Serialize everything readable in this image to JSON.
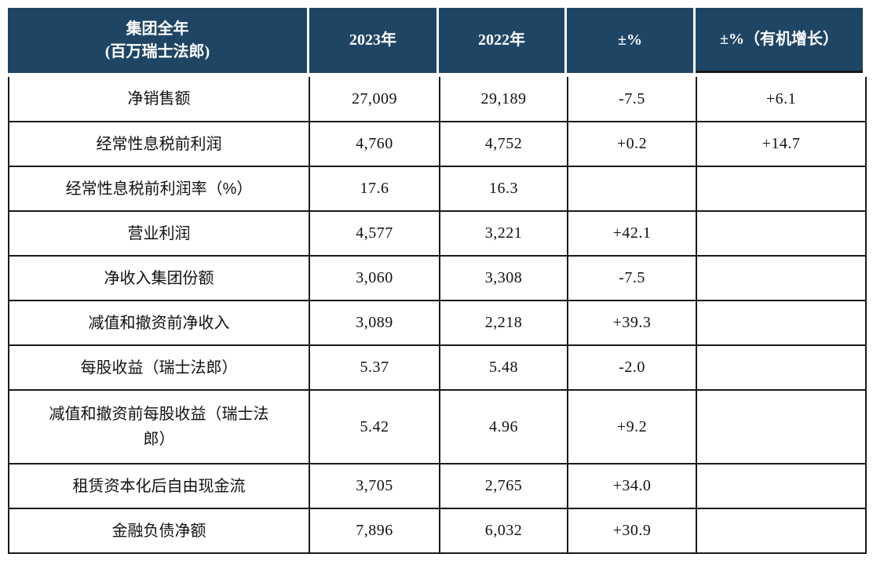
{
  "table": {
    "header": {
      "title": "集团全年\n(百万瑞士法郎)",
      "col_2023": "2023年",
      "col_2022": "2022年",
      "col_change": "±%",
      "col_organic": "±%（有机增长）"
    },
    "rows": [
      {
        "label": "净销售额",
        "y2023": "27,009",
        "y2022": "29,189",
        "change": "-7.5",
        "organic": "+6.1"
      },
      {
        "label": "经常性息税前利润",
        "y2023": "4,760",
        "y2022": "4,752",
        "change": "+0.2",
        "organic": "+14.7"
      },
      {
        "label": "经常性息税前利润率（%）",
        "y2023": "17.6",
        "y2022": "16.3",
        "change": "",
        "organic": ""
      },
      {
        "label": "营业利润",
        "y2023": "4,577",
        "y2022": "3,221",
        "change": "+42.1",
        "organic": ""
      },
      {
        "label": "净收入集团份额",
        "y2023": "3,060",
        "y2022": "3,308",
        "change": "-7.5",
        "organic": ""
      },
      {
        "label": "减值和撤资前净收入",
        "y2023": "3,089",
        "y2022": "2,218",
        "change": "+39.3",
        "organic": ""
      },
      {
        "label": "每股收益（瑞士法郎）",
        "y2023": "5.37",
        "y2022": "5.48",
        "change": "-2.0",
        "organic": ""
      },
      {
        "label": "减值和撤资前每股收益（瑞士法郎）",
        "y2023": "5.42",
        "y2022": "4.96",
        "change": "+9.2",
        "organic": ""
      },
      {
        "label": "租赁资本化后自由现金流",
        "y2023": "3,705",
        "y2022": "2,765",
        "change": "+34.0",
        "organic": ""
      },
      {
        "label": "金融负债净额",
        "y2023": "7,896",
        "y2022": "6,032",
        "change": "+30.9",
        "organic": ""
      }
    ]
  },
  "colors": {
    "header_bg": "#1F4565",
    "header_text": "#FFFFFF",
    "grid_border": "#1A1A1A",
    "body_text": "#111111",
    "background": "#FFFFFF"
  }
}
